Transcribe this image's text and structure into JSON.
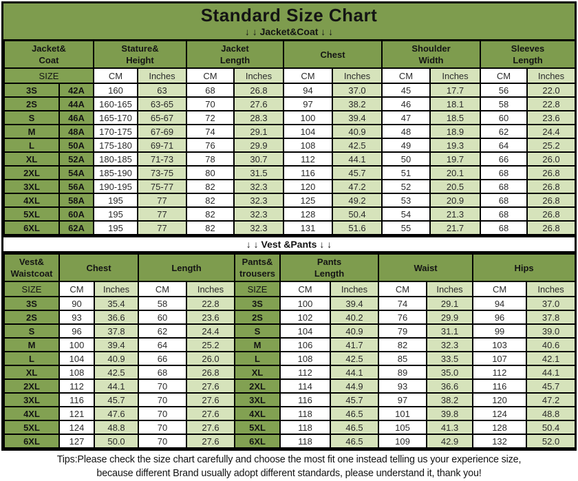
{
  "title": "Standard Size Chart",
  "colors": {
    "band_green": "#7e9c4e",
    "header_green": "#7e9c4e",
    "size_green": "#82a152",
    "light_green": "#d6e3bb",
    "border": "#000000"
  },
  "labels": {
    "size": "SIZE",
    "cm": "CM",
    "inches": "Inches"
  },
  "table1": {
    "banner": "↓ ↓  Jacket&Coat ↓ ↓",
    "groups": {
      "jacket_coat": "Jacket&\nCoat",
      "stature_height": "Stature&\nHeight",
      "jacket_length": "Jacket\nLength",
      "chest": "Chest",
      "shoulder_width": "Shoulder\nWidth",
      "sleeves_length": "Sleeves\nLength"
    },
    "rows": [
      {
        "size": "3S",
        "num": "42A",
        "values": [
          "160",
          "63",
          "68",
          "26.8",
          "94",
          "37.0",
          "45",
          "17.7",
          "56",
          "22.0"
        ]
      },
      {
        "size": "2S",
        "num": "44A",
        "values": [
          "160-165",
          "63-65",
          "70",
          "27.6",
          "97",
          "38.2",
          "46",
          "18.1",
          "58",
          "22.8"
        ]
      },
      {
        "size": "S",
        "num": "46A",
        "values": [
          "165-170",
          "65-67",
          "72",
          "28.3",
          "100",
          "39.4",
          "47",
          "18.5",
          "60",
          "23.6"
        ]
      },
      {
        "size": "M",
        "num": "48A",
        "values": [
          "170-175",
          "67-69",
          "74",
          "29.1",
          "104",
          "40.9",
          "48",
          "18.9",
          "62",
          "24.4"
        ]
      },
      {
        "size": "L",
        "num": "50A",
        "values": [
          "175-180",
          "69-71",
          "76",
          "29.9",
          "108",
          "42.5",
          "49",
          "19.3",
          "64",
          "25.2"
        ]
      },
      {
        "size": "XL",
        "num": "52A",
        "values": [
          "180-185",
          "71-73",
          "78",
          "30.7",
          "112",
          "44.1",
          "50",
          "19.7",
          "66",
          "26.0"
        ]
      },
      {
        "size": "2XL",
        "num": "54A",
        "values": [
          "185-190",
          "73-75",
          "80",
          "31.5",
          "116",
          "45.7",
          "51",
          "20.1",
          "68",
          "26.8"
        ]
      },
      {
        "size": "3XL",
        "num": "56A",
        "values": [
          "190-195",
          "75-77",
          "82",
          "32.3",
          "120",
          "47.2",
          "52",
          "20.5",
          "68",
          "26.8"
        ]
      },
      {
        "size": "4XL",
        "num": "58A",
        "values": [
          "195",
          "77",
          "82",
          "32.3",
          "125",
          "49.2",
          "53",
          "20.9",
          "68",
          "26.8"
        ]
      },
      {
        "size": "5XL",
        "num": "60A",
        "values": [
          "195",
          "77",
          "82",
          "32.3",
          "128",
          "50.4",
          "54",
          "21.3",
          "68",
          "26.8"
        ]
      },
      {
        "size": "6XL",
        "num": "62A",
        "values": [
          "195",
          "77",
          "82",
          "32.3",
          "131",
          "51.6",
          "55",
          "21.7",
          "68",
          "26.8"
        ]
      }
    ]
  },
  "table2": {
    "banner": "↓ ↓  Vest &Pants ↓ ↓",
    "groups": {
      "vest_waistcoat": "Vest&\nWaistcoat",
      "chest": "Chest",
      "length": "Length",
      "pants_trousers": "Pants&\ntrousers",
      "pants_length": "Pants\nLength",
      "waist": "Waist",
      "hips": "Hips"
    },
    "rows": [
      {
        "vest_size": "3S",
        "vest": [
          "90",
          "35.4",
          "58",
          "22.8"
        ],
        "pants_size": "3S",
        "pants": [
          "100",
          "39.4",
          "74",
          "29.1",
          "94",
          "37.0"
        ]
      },
      {
        "vest_size": "2S",
        "vest": [
          "93",
          "36.6",
          "60",
          "23.6"
        ],
        "pants_size": "2S",
        "pants": [
          "102",
          "40.2",
          "76",
          "29.9",
          "96",
          "37.8"
        ]
      },
      {
        "vest_size": "S",
        "vest": [
          "96",
          "37.8",
          "62",
          "24.4"
        ],
        "pants_size": "S",
        "pants": [
          "104",
          "40.9",
          "79",
          "31.1",
          "99",
          "39.0"
        ]
      },
      {
        "vest_size": "M",
        "vest": [
          "100",
          "39.4",
          "64",
          "25.2"
        ],
        "pants_size": "M",
        "pants": [
          "106",
          "41.7",
          "82",
          "32.3",
          "103",
          "40.6"
        ]
      },
      {
        "vest_size": "L",
        "vest": [
          "104",
          "40.9",
          "66",
          "26.0"
        ],
        "pants_size": "L",
        "pants": [
          "108",
          "42.5",
          "85",
          "33.5",
          "107",
          "42.1"
        ]
      },
      {
        "vest_size": "XL",
        "vest": [
          "108",
          "42.5",
          "68",
          "26.8"
        ],
        "pants_size": "XL",
        "pants": [
          "112",
          "44.1",
          "89",
          "35.0",
          "112",
          "44.1"
        ]
      },
      {
        "vest_size": "2XL",
        "vest": [
          "112",
          "44.1",
          "70",
          "27.6"
        ],
        "pants_size": "2XL",
        "pants": [
          "114",
          "44.9",
          "93",
          "36.6",
          "116",
          "45.7"
        ]
      },
      {
        "vest_size": "3XL",
        "vest": [
          "116",
          "45.7",
          "70",
          "27.6"
        ],
        "pants_size": "3XL",
        "pants": [
          "116",
          "45.7",
          "97",
          "38.2",
          "120",
          "47.2"
        ]
      },
      {
        "vest_size": "4XL",
        "vest": [
          "121",
          "47.6",
          "70",
          "27.6"
        ],
        "pants_size": "4XL",
        "pants": [
          "118",
          "46.5",
          "101",
          "39.8",
          "124",
          "48.8"
        ]
      },
      {
        "vest_size": "5XL",
        "vest": [
          "124",
          "48.8",
          "70",
          "27.6"
        ],
        "pants_size": "5XL",
        "pants": [
          "118",
          "46.5",
          "105",
          "41.3",
          "128",
          "50.4"
        ]
      },
      {
        "vest_size": "6XL",
        "vest": [
          "127",
          "50.0",
          "70",
          "27.6"
        ],
        "pants_size": "6XL",
        "pants": [
          "118",
          "46.5",
          "109",
          "42.9",
          "132",
          "52.0"
        ]
      }
    ]
  },
  "tips": {
    "line1": "Tips:Please check the size chart carefully and choose the most fit one instead telling us your experience size,",
    "line2": "because different Brand usually adopt different standards, please understand it, thank you!"
  }
}
